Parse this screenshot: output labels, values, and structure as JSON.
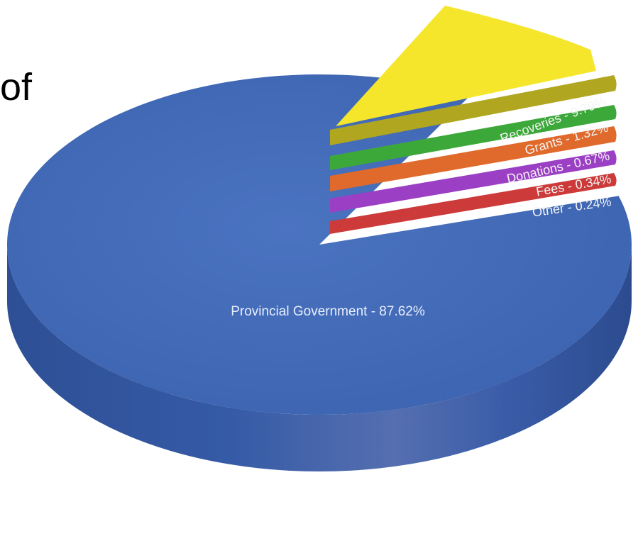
{
  "partial_title": "of",
  "chart_data": {
    "type": "pie",
    "style": "3d-exploded",
    "slices": [
      {
        "label": "Provincial Government",
        "value": 87.62,
        "display": "Provincial Government - 87.62%",
        "color": "#3f68b5",
        "exploded": false
      },
      {
        "label": "Recoveries",
        "value": 9.79,
        "display": "Recoveries - 9.79%",
        "color": "#f5e62c",
        "exploded": true
      },
      {
        "label": "Grants",
        "value": 1.32,
        "display": "Grants - 1.32%",
        "color": "#3da83a",
        "exploded": true
      },
      {
        "label": "Donations",
        "value": 0.67,
        "display": "Donations - 0.67%",
        "color": "#e06a2c",
        "exploded": true
      },
      {
        "label": "Fees",
        "value": 0.34,
        "display": "Fees - 0.34%",
        "color": "#9b3fc4",
        "exploded": true
      },
      {
        "label": "Other",
        "value": 0.24,
        "display": "Other - 0.24%",
        "color": "#cc3a3a",
        "exploded": true
      }
    ]
  }
}
